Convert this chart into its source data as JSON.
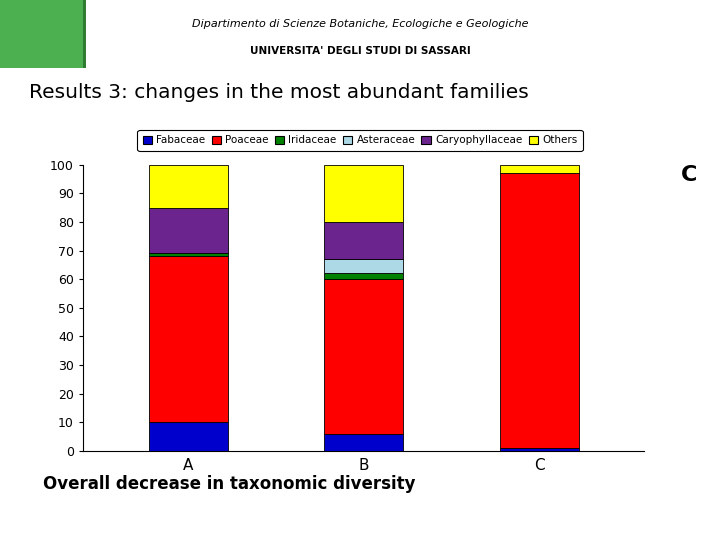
{
  "categories": [
    "A",
    "B",
    "C"
  ],
  "families": [
    "Fabaceae",
    "Poaceae",
    "Iridaceae",
    "Asteraceae",
    "Caryophyllaceae",
    "Others"
  ],
  "colors": [
    "#0000CD",
    "#FF0000",
    "#008000",
    "#ADD8E6",
    "#6B238E",
    "#FFFF00"
  ],
  "values": {
    "Fabaceae": [
      10,
      6,
      1
    ],
    "Poaceae": [
      58,
      54,
      96
    ],
    "Iridaceae": [
      1,
      2,
      0
    ],
    "Asteraceae": [
      0,
      5,
      0
    ],
    "Caryophyllaceae": [
      16,
      13,
      0
    ],
    "Others": [
      15,
      20,
      3
    ]
  },
  "ylim": [
    0,
    100
  ],
  "yticks": [
    0,
    10,
    20,
    30,
    40,
    50,
    60,
    70,
    80,
    90,
    100
  ],
  "title": "Results 3: changes in the most abundant families",
  "subtitle": "Overall decrease in taxonomic diversity",
  "annotation": "C",
  "header_text1": "Dipartimento di Scienze Botaniche, Ecologiche e Geologiche",
  "header_text2": "UNIVERSITA' DEGLI STUDI DI SASSARI",
  "bg_color": "#FFFFFF",
  "header_green": "#4CAF50",
  "header_dark": "#2E7D32",
  "bar_width": 0.45
}
